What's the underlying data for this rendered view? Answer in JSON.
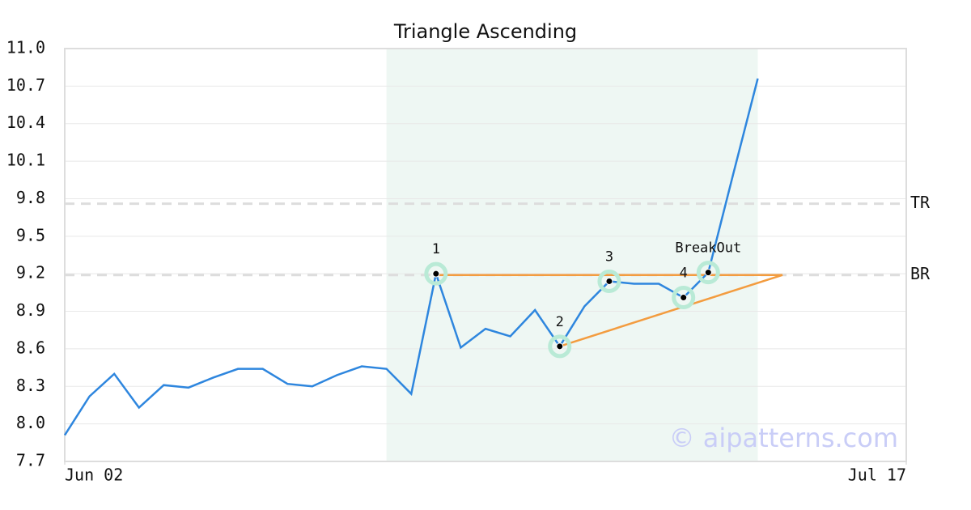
{
  "chart_data": {
    "type": "line",
    "title": "Triangle Ascending",
    "x": [
      0,
      1,
      2,
      3,
      4,
      5,
      6,
      7,
      8,
      9,
      10,
      11,
      12,
      13,
      14,
      15,
      16,
      17,
      18,
      19,
      20,
      21,
      22,
      23,
      24,
      25,
      26,
      27,
      28
    ],
    "values": [
      7.91,
      8.22,
      8.4,
      8.13,
      8.31,
      8.29,
      8.37,
      8.44,
      8.44,
      8.32,
      8.3,
      8.39,
      8.46,
      8.44,
      8.24,
      9.2,
      8.61,
      8.76,
      8.7,
      8.91,
      8.62,
      8.94,
      9.14,
      9.12,
      9.12,
      9.01,
      9.21,
      9.99,
      10.76
    ],
    "color": "#2e86de",
    "xlim": [
      0,
      34
    ],
    "xticks": [
      {
        "value": 0,
        "label": "Jun 02"
      },
      {
        "value": 34,
        "label": "Jul 17"
      }
    ],
    "ylim": [
      7.7,
      11.0
    ],
    "yticks": [
      7.7,
      {
        "value": 8,
        "label": "8.0"
      },
      8.3,
      8.6,
      8.9,
      9.2,
      9.5,
      9.8,
      10.1,
      10.4,
      10.7,
      {
        "value": 11,
        "label": "11.0"
      }
    ],
    "grid": true,
    "pattern_zone": [
      13,
      28
    ],
    "zone_color": "#eef7f3",
    "pivots": [
      {
        "label": "1",
        "x": 15,
        "value": 9.2
      },
      {
        "label": "2",
        "x": 20,
        "value": 8.62
      },
      {
        "label": "3",
        "x": 22,
        "value": 9.14
      },
      {
        "label": "4",
        "x": 25,
        "value": 9.01
      },
      {
        "label": "BreakOut",
        "x": 26,
        "value": 9.21
      }
    ],
    "trend_color": "#f39c3f",
    "trend_lines": [
      {
        "x": [
          15,
          29
        ],
        "values": [
          9.19,
          9.19
        ]
      },
      {
        "x": [
          20,
          29
        ],
        "values": [
          8.62,
          9.19
        ]
      }
    ],
    "levels": [
      {
        "label": "TR",
        "value": 9.76
      },
      {
        "label": "BR",
        "value": 9.19
      }
    ],
    "watermark": "© aipatterns.com"
  }
}
